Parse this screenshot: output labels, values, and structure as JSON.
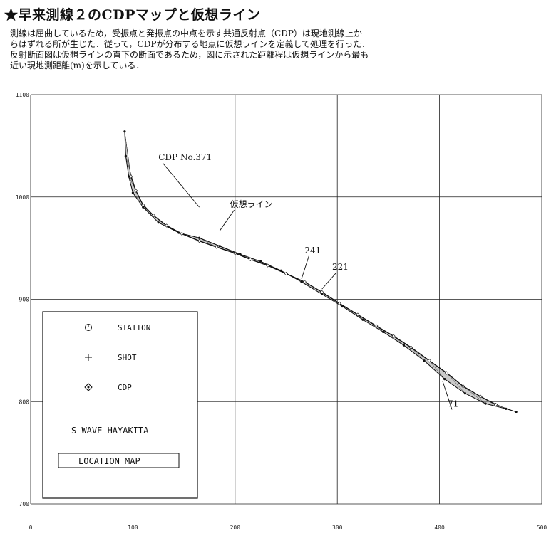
{
  "header": {
    "title": "★早来測線２のCDPマップと仮想ライン",
    "desc_lines": [
      "測線は屈曲しているため，受振点と発振点の中点を示す共通反射点（CDP）は現地測線上か",
      "らはずれる所が生じた．従って，CDPが分布する地点に仮想ラインを定義して処理を行った．",
      "反射断面図は仮想ラインの直下の断面であるため，図に示された距離程は仮想ラインから最も",
      "近い現地測距離(m)を示している．"
    ]
  },
  "chart_data": {
    "type": "scatter",
    "xlim": [
      0,
      500
    ],
    "ylim": [
      700,
      1100
    ],
    "x_ticks": [
      "0",
      "100",
      "200",
      "300",
      "400",
      "500"
    ],
    "y_ticks": [
      "700",
      "800",
      "900",
      "1000",
      "1100"
    ],
    "x_tick_values": [
      0,
      100,
      200,
      300,
      400,
      500
    ],
    "y_tick_values": [
      700,
      800,
      900,
      1000,
      1100
    ],
    "grid": true,
    "series": [
      {
        "name": "STATION",
        "x": [
          92,
          93,
          96,
          100,
          110,
          125,
          145,
          165,
          185,
          205,
          225,
          245,
          265,
          285,
          305,
          325,
          345,
          365,
          385,
          405,
          425,
          445,
          465,
          475
        ],
        "y": [
          1064,
          1040,
          1020,
          1004,
          990,
          975,
          965,
          960,
          952,
          944,
          937,
          928,
          917,
          905,
          893,
          880,
          868,
          855,
          840,
          822,
          808,
          798,
          793,
          790
        ]
      },
      {
        "name": "CDP",
        "x": [
          98,
          103,
          110,
          120,
          133,
          148,
          165,
          182,
          200,
          215,
          232,
          250,
          268,
          285,
          302,
          320,
          338,
          355,
          372,
          390,
          407,
          423,
          440,
          455
        ],
        "y": [
          1020,
          1006,
          992,
          982,
          972,
          964,
          957,
          951,
          945,
          939,
          933,
          925,
          917,
          907,
          896,
          885,
          874,
          864,
          853,
          840,
          828,
          815,
          805,
          797
        ]
      }
    ],
    "annotations": [
      {
        "text": "CDP No.371",
        "x": 125,
        "y": 1036,
        "arrow_to": [
          165,
          990
        ]
      },
      {
        "text": "仮想ライン",
        "x": 195,
        "y": 990,
        "arrow_to": [
          185,
          967
        ]
      },
      {
        "text": "241",
        "x": 268,
        "y": 945,
        "arrow_to": [
          265,
          920
        ]
      },
      {
        "text": "221",
        "x": 295,
        "y": 929,
        "arrow_to": [
          285,
          910
        ]
      },
      {
        "text": "71",
        "x": 408,
        "y": 795,
        "arrow_to": [
          403,
          820
        ]
      }
    ]
  },
  "legend": {
    "station_label": "STATION",
    "shot_label": "SHOT",
    "cdp_label": "CDP",
    "survey_name": "S-WAVE HAYAKITA",
    "map_label": "LOCATION MAP"
  }
}
